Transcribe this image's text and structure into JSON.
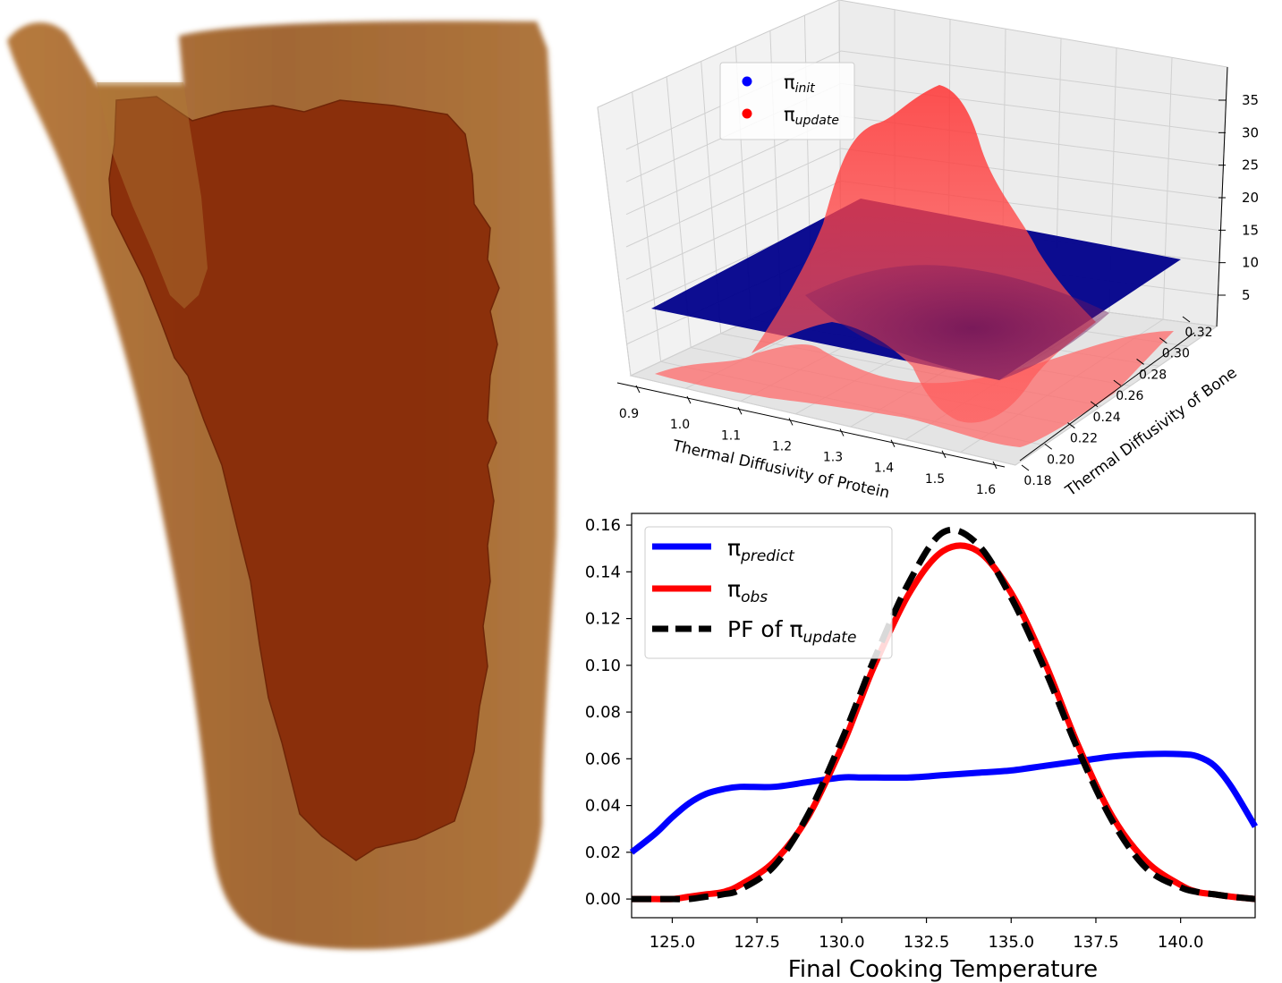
{
  "colors": {
    "tissue_outer": "#a0622a",
    "tissue_inner": "#8a2e0a",
    "blue_surface": "#00008b",
    "red_surface": "#ff2a2a",
    "line_predict": "#0000ff",
    "line_obs": "#ff0000",
    "line_update": "#000000"
  },
  "render": {
    "icon": "meat-cut-volume-render-icon"
  },
  "chart_data": [
    {
      "type": "surface3d",
      "xlabel": "Thermal Diffusivity of Protein",
      "ylabel": "Thermal Diffusivity of Bone",
      "xticks": [
        "0.9",
        "1.0",
        "1.1",
        "1.2",
        "1.3",
        "1.4",
        "1.5",
        "1.6"
      ],
      "yticks": [
        "0.18",
        "0.20",
        "0.22",
        "0.24",
        "0.26",
        "0.28",
        "0.30",
        "0.32"
      ],
      "zticks": [
        "5",
        "10",
        "15",
        "20",
        "25",
        "30",
        "35"
      ],
      "xlim": [
        0.9,
        1.6
      ],
      "ylim": [
        0.18,
        0.32
      ],
      "zlim": [
        0,
        37
      ],
      "legend_position": "top-left",
      "series": [
        {
          "name": "π_init",
          "legend_main": "π",
          "legend_sub": "init",
          "shape": "flat plane",
          "z": 9.0
        },
        {
          "name": "π_update",
          "legend_main": "π",
          "legend_sub": "update",
          "shape": "peaked density",
          "peak_x": 1.27,
          "peak_y": 0.24,
          "peak_z": 36.5
        }
      ]
    },
    {
      "type": "line",
      "xlabel": "Final Cooking Temperature",
      "ylabel": "",
      "xlim": [
        123.8,
        142.2
      ],
      "ylim": [
        -0.008,
        0.165
      ],
      "xticks": [
        "125.0",
        "127.5",
        "130.0",
        "132.5",
        "135.0",
        "137.5",
        "140.0"
      ],
      "yticks": [
        "0.00",
        "0.02",
        "0.04",
        "0.06",
        "0.08",
        "0.10",
        "0.12",
        "0.14",
        "0.16"
      ],
      "grid": false,
      "legend_position": "top-left",
      "x": [
        123.8,
        124.5,
        125.0,
        125.5,
        126.0,
        126.5,
        127.0,
        128.0,
        129.0,
        130.0,
        130.5,
        131.0,
        132.0,
        133.0,
        134.0,
        135.0,
        136.0,
        137.0,
        138.0,
        139.0,
        140.0,
        140.5,
        141.0,
        141.5,
        142.2
      ],
      "series": [
        {
          "name": "π_predict",
          "legend_main": "π",
          "legend_sub": "predict",
          "values": [
            0.02,
            0.028,
            0.035,
            0.041,
            0.045,
            0.047,
            0.048,
            0.048,
            0.05,
            0.052,
            0.052,
            0.052,
            0.052,
            0.053,
            0.054,
            0.055,
            0.057,
            0.059,
            0.061,
            0.062,
            0.062,
            0.061,
            0.057,
            0.048,
            0.031
          ]
        },
        {
          "name": "π_obs",
          "legend_main": "π",
          "legend_sub": "obs",
          "values": [
            0.0,
            0.0,
            0.0,
            0.001,
            0.002,
            0.003,
            0.006,
            0.016,
            0.035,
            0.065,
            0.083,
            0.101,
            0.131,
            0.149,
            0.149,
            0.131,
            0.101,
            0.065,
            0.035,
            0.016,
            0.006,
            0.003,
            0.002,
            0.001,
            0.0
          ]
        },
        {
          "name": "PF of π_update",
          "legend_main": "PF of π",
          "legend_sub": "update",
          "dashed": true,
          "values": [
            0.0,
            0.0,
            0.0,
            0.0,
            0.001,
            0.002,
            0.004,
            0.014,
            0.036,
            0.068,
            0.086,
            0.104,
            0.136,
            0.157,
            0.152,
            0.129,
            0.098,
            0.063,
            0.033,
            0.013,
            0.005,
            0.003,
            0.002,
            0.001,
            0.0
          ]
        }
      ]
    }
  ]
}
